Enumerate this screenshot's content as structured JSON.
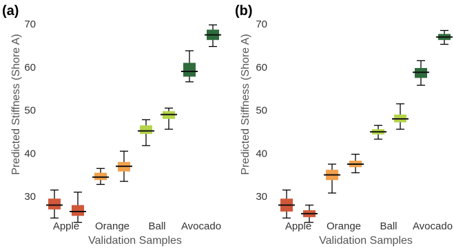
{
  "chart_data": [
    {
      "type": "box",
      "panel_label": "(a)",
      "title": "",
      "xlabel": "Validation Samples",
      "ylabel": "Predicted Stiffness (Shore A)",
      "ylim": [
        23,
        70
      ],
      "yticks": [
        30,
        40,
        50,
        60,
        70
      ],
      "categories": [
        "Apple",
        "Orange",
        "Ball",
        "Avocado"
      ],
      "boxes": [
        {
          "category": "Apple",
          "min": 25.0,
          "q1": 27.0,
          "median": 28.0,
          "q3": 29.5,
          "max": 31.5,
          "color": "#d0583a"
        },
        {
          "category": "Apple",
          "min": 24.0,
          "q1": 25.5,
          "median": 26.5,
          "q3": 28.0,
          "max": 31.0,
          "color": "#d0583a"
        },
        {
          "category": "Orange",
          "min": 32.8,
          "q1": 33.8,
          "median": 34.5,
          "q3": 35.5,
          "max": 36.5,
          "color": "#f0a04c"
        },
        {
          "category": "Orange",
          "min": 33.5,
          "q1": 35.8,
          "median": 37.0,
          "q3": 38.0,
          "max": 40.5,
          "color": "#f0a04c"
        },
        {
          "category": "Ball",
          "min": 41.8,
          "q1": 44.5,
          "median": 45.2,
          "q3": 46.5,
          "max": 47.8,
          "color": "#b5d44a"
        },
        {
          "category": "Ball",
          "min": 45.6,
          "q1": 48.0,
          "median": 49.0,
          "q3": 49.8,
          "max": 50.5,
          "color": "#b5d44a"
        },
        {
          "category": "Avocado",
          "min": 56.6,
          "q1": 57.8,
          "median": 59.0,
          "q3": 61.0,
          "max": 63.8,
          "color": "#2f6b3c"
        },
        {
          "category": "Avocado",
          "min": 64.8,
          "q1": 66.3,
          "median": 67.5,
          "q3": 68.7,
          "max": 69.8,
          "color": "#2f6b3c"
        }
      ]
    },
    {
      "type": "box",
      "panel_label": "(b)",
      "title": "",
      "xlabel": "Validation Samples",
      "ylabel": "Predicted Stiffness (Shore A)",
      "ylim": [
        23,
        70
      ],
      "yticks": [
        30,
        40,
        50,
        60,
        70
      ],
      "categories": [
        "Apple",
        "Orange",
        "Ball",
        "Avocado"
      ],
      "boxes": [
        {
          "category": "Apple",
          "min": 25.0,
          "q1": 26.5,
          "median": 28.0,
          "q3": 29.5,
          "max": 31.5,
          "color": "#d0583a"
        },
        {
          "category": "Apple",
          "min": 24.0,
          "q1": 25.2,
          "median": 26.0,
          "q3": 26.8,
          "max": 28.0,
          "color": "#d0583a"
        },
        {
          "category": "Orange",
          "min": 30.8,
          "q1": 33.8,
          "median": 35.0,
          "q3": 36.2,
          "max": 37.5,
          "color": "#f0a04c"
        },
        {
          "category": "Orange",
          "min": 35.5,
          "q1": 36.8,
          "median": 37.5,
          "q3": 38.3,
          "max": 39.8,
          "color": "#f0a04c"
        },
        {
          "category": "Ball",
          "min": 43.3,
          "q1": 44.4,
          "median": 45.0,
          "q3": 45.6,
          "max": 46.5,
          "color": "#b5d44a"
        },
        {
          "category": "Ball",
          "min": 45.6,
          "q1": 47.2,
          "median": 48.0,
          "q3": 49.0,
          "max": 51.5,
          "color": "#b5d44a"
        },
        {
          "category": "Avocado",
          "min": 55.8,
          "q1": 57.5,
          "median": 58.8,
          "q3": 59.8,
          "max": 61.5,
          "color": "#2f6b3c"
        },
        {
          "category": "Avocado",
          "min": 65.3,
          "q1": 66.3,
          "median": 67.0,
          "q3": 67.7,
          "max": 68.5,
          "color": "#2f6b3c"
        }
      ]
    }
  ]
}
